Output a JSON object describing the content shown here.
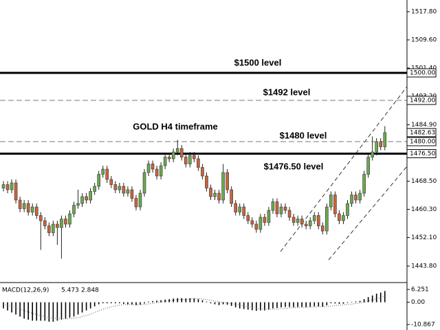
{
  "chart_data": {
    "type": "candlestick",
    "title": "GOLD H4 timeframe",
    "up_color": "#6aa84f",
    "down_color": "#c8643c",
    "ylim": [
      1439.2,
      1521.2
    ],
    "yticks": [
      {
        "value": 1517.8,
        "label": "1517.80"
      },
      {
        "value": 1509.6,
        "label": "1509.60"
      },
      {
        "value": 1501.4,
        "label": "1501.40"
      },
      {
        "value": 1493.2,
        "label": "1493.20"
      },
      {
        "value": 1484.9,
        "label": "1484.90"
      },
      {
        "value": 1468.5,
        "label": "1468.50"
      },
      {
        "value": 1460.3,
        "label": "1460.30"
      },
      {
        "value": 1452.1,
        "label": "1452.10"
      },
      {
        "value": 1443.8,
        "label": "1443.80"
      }
    ],
    "levels": [
      {
        "value": 1500,
        "label": "1500.00",
        "text": "$1500 level",
        "style": "solid"
      },
      {
        "value": 1492,
        "label": "1492.00",
        "text": "$1492 level",
        "style": "dashed"
      },
      {
        "value": 1480,
        "label": "1480.00",
        "text": "$1480 level",
        "style": "dashed"
      },
      {
        "value": 1476.5,
        "label": "1476.50",
        "text": "$1476.50 level",
        "style": "solid"
      }
    ],
    "current_price": {
      "value": 1482.63,
      "label": "1482.63"
    },
    "open": [
      1466.5,
      1467.5,
      1466.0,
      1468.0,
      1463.0,
      1460.5,
      1462.0,
      1459.5,
      1461.0,
      1458.5,
      1457.0,
      1455.5,
      1453.5,
      1456.0,
      1455.0,
      1457.5,
      1456.0,
      1459.0,
      1461.5,
      1462.0,
      1464.0,
      1463.0,
      1465.5,
      1467.0,
      1470.5,
      1472.0,
      1469.0,
      1467.5,
      1466.0,
      1467.0,
      1465.0,
      1466.0,
      1463.5,
      1461.0,
      1465.0,
      1471.0,
      1473.5,
      1472.0,
      1470.0,
      1473.0,
      1475.5,
      1475.0,
      1477.0,
      1478.0,
      1475.5,
      1473.5,
      1476.0,
      1475.0,
      1472.5,
      1470.0,
      1466.5,
      1464.0,
      1465.0,
      1463.0,
      1471.0,
      1466.0,
      1462.0,
      1459.5,
      1461.0,
      1458.5,
      1457.0,
      1456.0,
      1454.5,
      1458.0,
      1456.5,
      1460.0,
      1462.5,
      1459.0,
      1461.0,
      1460.0,
      1458.0,
      1456.5,
      1457.5,
      1456.0,
      1455.5,
      1457.0,
      1458.5,
      1455.5,
      1454.0,
      1461.0,
      1464.5,
      1459.0,
      1457.0,
      1458.5,
      1462.0,
      1464.5,
      1463.0,
      1465.0,
      1470.5,
      1475.5,
      1477.0,
      1480.0,
      1478.5
    ],
    "high": [
      1468.5,
      1468.5,
      1469.0,
      1469.0,
      1464.0,
      1463.0,
      1463.0,
      1462.0,
      1462.0,
      1459.5,
      1458.0,
      1456.5,
      1457.0,
      1457.0,
      1458.5,
      1458.5,
      1460.0,
      1462.5,
      1466.0,
      1465.0,
      1465.0,
      1466.5,
      1468.0,
      1471.5,
      1473.0,
      1473.0,
      1470.0,
      1468.5,
      1468.0,
      1468.0,
      1467.0,
      1467.0,
      1464.5,
      1466.0,
      1472.0,
      1474.5,
      1474.5,
      1473.0,
      1474.0,
      1476.5,
      1476.5,
      1478.0,
      1480.5,
      1479.0,
      1476.5,
      1477.0,
      1477.0,
      1476.0,
      1473.5,
      1471.0,
      1467.5,
      1466.0,
      1466.0,
      1473.5,
      1472.0,
      1467.0,
      1463.0,
      1462.0,
      1462.0,
      1459.5,
      1458.0,
      1457.0,
      1459.0,
      1459.0,
      1461.0,
      1463.5,
      1463.5,
      1462.0,
      1462.0,
      1461.0,
      1459.0,
      1458.5,
      1458.5,
      1457.0,
      1458.0,
      1459.5,
      1459.5,
      1456.5,
      1462.0,
      1465.5,
      1465.5,
      1460.0,
      1459.5,
      1463.0,
      1465.5,
      1465.5,
      1466.0,
      1471.5,
      1476.5,
      1481.5,
      1481.0,
      1481.0,
      1484.5
    ],
    "low": [
      1465.5,
      1465.0,
      1465.0,
      1462.0,
      1459.5,
      1459.5,
      1458.5,
      1458.5,
      1457.5,
      1448.5,
      1454.5,
      1452.5,
      1452.5,
      1450.0,
      1446.0,
      1455.0,
      1455.0,
      1458.0,
      1460.5,
      1461.0,
      1462.0,
      1462.0,
      1464.5,
      1466.0,
      1469.5,
      1468.0,
      1466.5,
      1465.0,
      1465.0,
      1464.0,
      1464.0,
      1462.5,
      1460.0,
      1460.0,
      1464.0,
      1470.0,
      1471.0,
      1469.0,
      1469.0,
      1472.0,
      1474.0,
      1474.0,
      1476.0,
      1474.5,
      1472.5,
      1472.5,
      1474.0,
      1471.5,
      1469.0,
      1465.5,
      1463.0,
      1463.0,
      1462.0,
      1462.0,
      1465.0,
      1461.0,
      1458.5,
      1458.5,
      1457.5,
      1456.0,
      1455.0,
      1453.5,
      1453.5,
      1455.5,
      1455.5,
      1459.0,
      1458.0,
      1458.0,
      1459.0,
      1457.0,
      1455.5,
      1455.5,
      1455.0,
      1454.5,
      1454.5,
      1456.0,
      1454.5,
      1453.0,
      1453.0,
      1460.0,
      1458.0,
      1456.0,
      1456.0,
      1457.5,
      1461.0,
      1462.0,
      1462.0,
      1464.0,
      1469.5,
      1474.5,
      1476.0,
      1477.5,
      1477.5
    ],
    "close": [
      1467.5,
      1466.0,
      1468.0,
      1463.0,
      1460.5,
      1462.0,
      1459.5,
      1461.0,
      1458.5,
      1457.0,
      1455.5,
      1453.5,
      1456.0,
      1455.0,
      1457.5,
      1456.0,
      1459.0,
      1461.5,
      1462.0,
      1464.0,
      1463.0,
      1465.5,
      1467.0,
      1470.5,
      1472.0,
      1469.0,
      1467.5,
      1466.0,
      1467.0,
      1465.0,
      1466.0,
      1463.5,
      1461.0,
      1465.0,
      1471.0,
      1473.5,
      1472.0,
      1470.0,
      1473.0,
      1475.5,
      1475.0,
      1477.0,
      1478.0,
      1475.5,
      1473.5,
      1476.0,
      1475.0,
      1472.5,
      1470.0,
      1466.5,
      1464.0,
      1465.0,
      1463.0,
      1471.0,
      1466.0,
      1462.0,
      1459.5,
      1461.0,
      1458.5,
      1457.0,
      1456.0,
      1454.5,
      1458.0,
      1456.5,
      1460.0,
      1462.5,
      1459.0,
      1461.0,
      1460.0,
      1458.0,
      1456.5,
      1457.5,
      1456.0,
      1455.5,
      1457.0,
      1458.5,
      1455.5,
      1454.0,
      1461.0,
      1464.5,
      1459.0,
      1457.0,
      1458.5,
      1462.0,
      1464.5,
      1463.0,
      1465.0,
      1470.5,
      1475.5,
      1477.0,
      1480.0,
      1478.5,
      1482.63
    ],
    "macd": {
      "name": "MACD(12,26,9)",
      "ylim": [
        -10.867,
        6.251
      ],
      "yticks": [
        {
          "value": 6.251,
          "label": "6.251"
        },
        {
          "value": 0,
          "label": "0.00"
        },
        {
          "value": -10.867,
          "label": "-10.867"
        }
      ],
      "histogram": [
        -3,
        -4,
        -5,
        -6,
        -7,
        -8,
        -8.5,
        -9,
        -9,
        -9,
        -9,
        -9.5,
        -9.5,
        -9,
        -8.5,
        -8,
        -7.5,
        -7,
        -6,
        -5,
        -4,
        -3,
        -2,
        -1,
        -0.5,
        -0.5,
        -0.5,
        -0.5,
        -0.5,
        -0.8,
        -1,
        -1.2,
        -1.5,
        -1.2,
        -0.6,
        0.3,
        0.6,
        0.8,
        1.0,
        1.3,
        1.5,
        1.8,
        2.0,
        2.0,
        1.8,
        1.9,
        1.8,
        1.5,
        1.0,
        0.3,
        -0.5,
        -1.0,
        -1.4,
        -1.0,
        -1.2,
        -1.8,
        -2.5,
        -3.0,
        -3.3,
        -3.6,
        -3.9,
        -4.2,
        -4.0,
        -4.0,
        -3.6,
        -3.0,
        -2.8,
        -2.5,
        -2.3,
        -2.3,
        -2.4,
        -2.3,
        -2.3,
        -2.4,
        -2.2,
        -2.0,
        -2.0,
        -2.2,
        -1.5,
        -0.5,
        -0.6,
        -0.8,
        -0.7,
        -0.3,
        0.2,
        0.4,
        0.7,
        1.5,
        2.5,
        3.3,
        4.2,
        4.7,
        5.473
      ],
      "signal": [
        -1,
        -1.5,
        -2,
        -2.6,
        -3.3,
        -4,
        -4.7,
        -5.4,
        -6,
        -6.5,
        -7,
        -7.4,
        -7.8,
        -8,
        -8.1,
        -8.1,
        -8,
        -7.8,
        -7.5,
        -7,
        -6.5,
        -5.8,
        -5,
        -4.2,
        -3.4,
        -2.8,
        -2.2,
        -1.8,
        -1.4,
        -1.2,
        -1.1,
        -1.1,
        -1.2,
        -1.2,
        -1.1,
        -0.8,
        -0.5,
        -0.2,
        0.1,
        0.4,
        0.7,
        1.0,
        1.2,
        1.4,
        1.5,
        1.6,
        1.7,
        1.7,
        1.6,
        1.3,
        1.0,
        0.6,
        0.2,
        -0.1,
        -0.3,
        -0.6,
        -1.0,
        -1.4,
        -1.8,
        -2.2,
        -2.6,
        -2.9,
        -3.2,
        -3.4,
        -3.5,
        -3.4,
        -3.3,
        -3.1,
        -3.0,
        -2.8,
        -2.7,
        -2.6,
        -2.5,
        -2.5,
        -2.4,
        -2.3,
        -2.2,
        -2.2,
        -2.1,
        -1.9,
        -1.6,
        -1.4,
        -1.3,
        -1.1,
        -0.9,
        -0.6,
        -0.3,
        0.1,
        0.6,
        1.2,
        1.8,
        2.3,
        2.848
      ]
    }
  }
}
